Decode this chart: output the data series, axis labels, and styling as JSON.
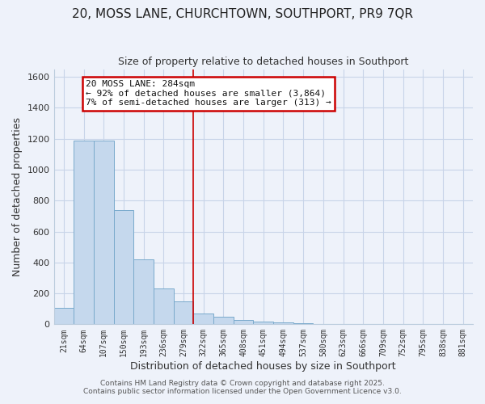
{
  "title_line1": "20, MOSS LANE, CHURCHTOWN, SOUTHPORT, PR9 7QR",
  "title_line2": "Size of property relative to detached houses in Southport",
  "xlabel": "Distribution of detached houses by size in Southport",
  "ylabel": "Number of detached properties",
  "bar_labels": [
    "21sqm",
    "64sqm",
    "107sqm",
    "150sqm",
    "193sqm",
    "236sqm",
    "279sqm",
    "322sqm",
    "365sqm",
    "408sqm",
    "451sqm",
    "494sqm",
    "537sqm",
    "580sqm",
    "623sqm",
    "666sqm",
    "709sqm",
    "752sqm",
    "795sqm",
    "838sqm",
    "881sqm"
  ],
  "bar_values": [
    105,
    1190,
    1190,
    740,
    420,
    230,
    150,
    70,
    50,
    30,
    20,
    10,
    5,
    2,
    1,
    0,
    0,
    0,
    0,
    0,
    0
  ],
  "bar_color": "#c5d8ed",
  "bar_edge_color": "#7aaacc",
  "grid_color": "#c8d4e8",
  "background_color": "#eef2fa",
  "vline_x": 6.5,
  "vline_color": "#cc0000",
  "annotation_box_text_line1": "20 MOSS LANE: 284sqm",
  "annotation_box_text_line2": "← 92% of detached houses are smaller (3,864)",
  "annotation_box_text_line3": "7% of semi-detached houses are larger (313) →",
  "annotation_box_color": "#ffffff",
  "annotation_box_edge_color": "#cc0000",
  "ylim": [
    0,
    1650
  ],
  "yticks": [
    0,
    200,
    400,
    600,
    800,
    1000,
    1200,
    1400,
    1600
  ],
  "footer_line1": "Contains HM Land Registry data © Crown copyright and database right 2025.",
  "footer_line2": "Contains public sector information licensed under the Open Government Licence v3.0."
}
